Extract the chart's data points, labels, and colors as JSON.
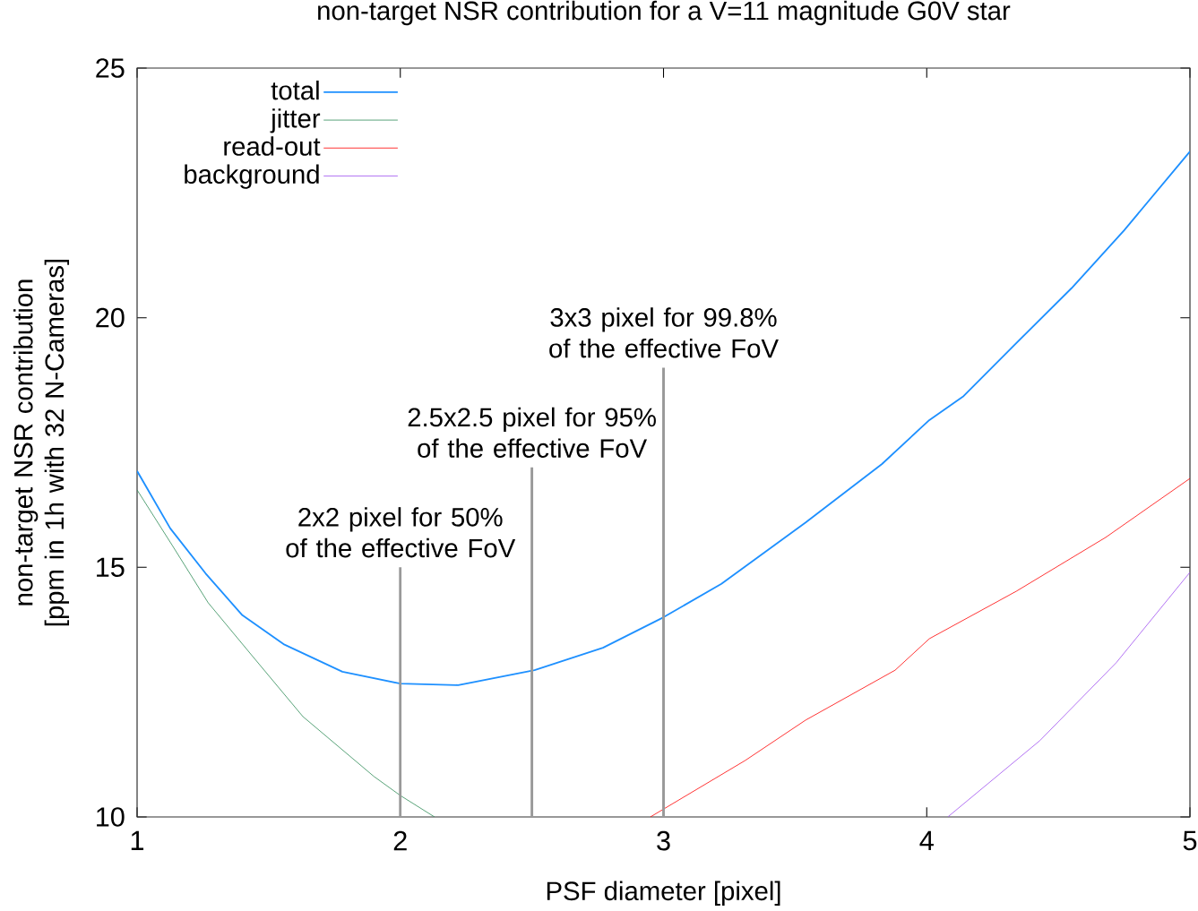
{
  "chart_data": {
    "type": "line",
    "title": "non-target NSR contribution for a V=11 magnitude G0V star",
    "xlabel": "PSF diameter [pixel]",
    "ylabel": "non-target NSR contribution [ppm in 1h with 32 N-Cameras]",
    "xlim": [
      1,
      5
    ],
    "ylim": [
      10,
      25
    ],
    "xticks": [
      1,
      2,
      3,
      4,
      5
    ],
    "yticks": [
      10,
      15,
      20,
      25
    ],
    "grid": false,
    "legend": "top left",
    "marker": "none",
    "line_style": "solid",
    "series": [
      {
        "name": "total",
        "color": "#1e90ff",
        "x": [
          1.0,
          1.126,
          1.26,
          1.4,
          1.56,
          1.78,
          2.0,
          2.22,
          2.51,
          2.77,
          3.0,
          3.22,
          3.54,
          3.83,
          4.01,
          4.14,
          4.34,
          4.55,
          4.75,
          5.0
        ],
        "values": [
          16.93,
          15.78,
          14.88,
          14.04,
          13.45,
          12.91,
          12.67,
          12.64,
          12.94,
          13.39,
          14.0,
          14.67,
          15.9,
          17.07,
          17.95,
          18.43,
          19.49,
          20.59,
          21.75,
          23.33
        ]
      },
      {
        "name": "jitter",
        "color": "#2e8b57",
        "x": [
          1.0,
          1.136,
          1.27,
          1.44,
          1.63,
          1.9,
          2.0,
          2.13
        ],
        "values": [
          16.55,
          15.42,
          14.29,
          13.21,
          12.01,
          10.81,
          10.43,
          10.0
        ]
      },
      {
        "name": "read-out",
        "color": "#ff0000",
        "x": [
          2.95,
          3.31,
          3.54,
          3.88,
          4.01,
          4.34,
          4.68,
          5.0
        ],
        "values": [
          10.0,
          11.13,
          11.94,
          12.94,
          13.57,
          14.52,
          15.6,
          16.78
        ]
      },
      {
        "name": "background",
        "color": "#a050f0",
        "x": [
          4.08,
          4.43,
          4.72,
          5.0
        ],
        "values": [
          10.0,
          11.53,
          13.09,
          14.9
        ]
      }
    ],
    "ref_lines": [
      {
        "axis": "x",
        "value": 2,
        "label": "2x2 pixel for 50% of the effective FoV",
        "color": "#999999"
      },
      {
        "axis": "x",
        "value": 2.5,
        "label": "2.5x2.5 pixel for 95% of the effective FoV",
        "color": "#999999"
      },
      {
        "axis": "x",
        "value": 3,
        "label": "3x3 pixel for 99.8% of the effective FoV",
        "color": "#999999"
      }
    ]
  }
}
